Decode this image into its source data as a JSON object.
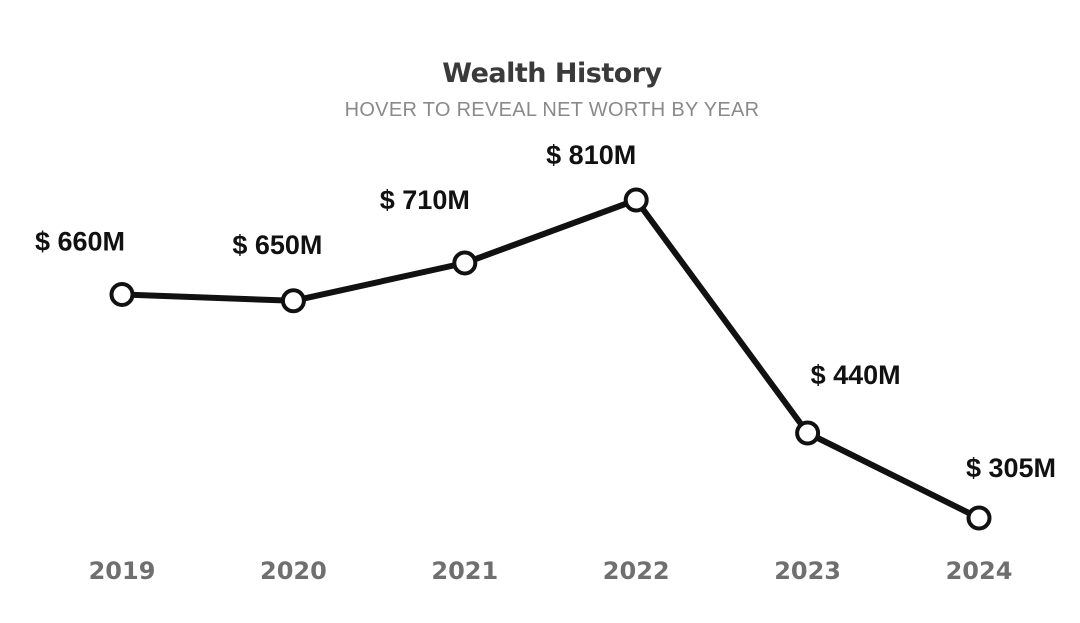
{
  "header": {
    "title": "Wealth History",
    "subtitle": "HOVER TO REVEAL NET WORTH BY YEAR"
  },
  "colors": {
    "line": "#111111",
    "marker_fill": "#ffffff",
    "title": "#3a3a3a",
    "subtitle": "#8a8a8a",
    "year_label": "#6f6f6f"
  },
  "chart_data": {
    "type": "line",
    "title": "Wealth History",
    "subtitle": "HOVER TO REVEAL NET WORTH BY YEAR",
    "categories": [
      "2019",
      "2020",
      "2021",
      "2022",
      "2023",
      "2024"
    ],
    "values": [
      660,
      650,
      710,
      810,
      440,
      305
    ],
    "unit": "M",
    "data_labels": [
      "$ 660M",
      "$ 650M",
      "$ 710M",
      "$ 810M",
      "$ 440M",
      "$ 305M"
    ],
    "xlabel": "",
    "ylabel": "",
    "grid": false,
    "legend": "none"
  }
}
